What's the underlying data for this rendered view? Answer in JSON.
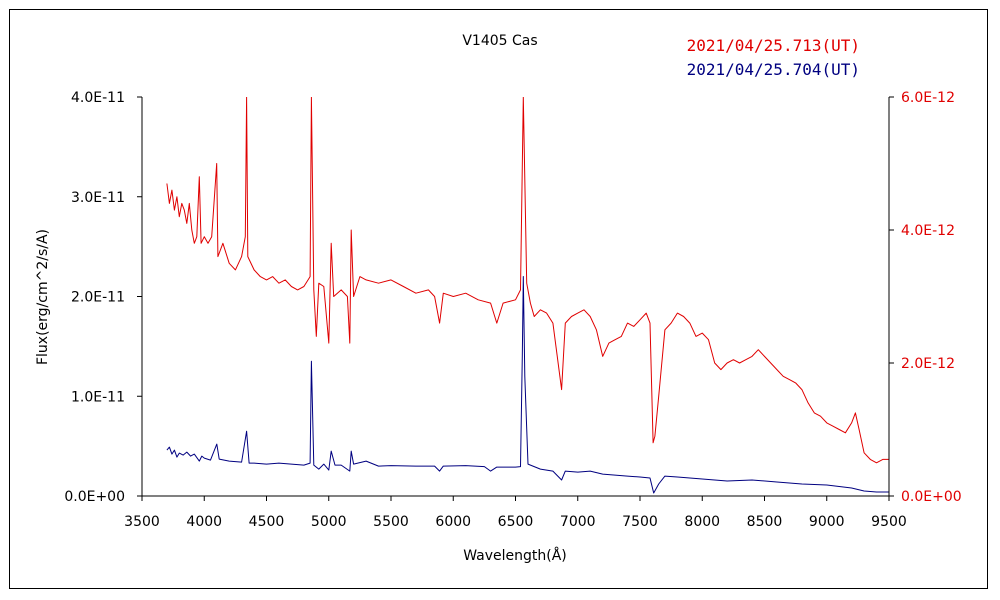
{
  "chart_data": {
    "type": "line",
    "title": "V1405 Cas",
    "xlabel": "Wavelength(Å)",
    "ylabel": "Flux(erg/cm^2/s/A)",
    "xlim": [
      3500,
      9500
    ],
    "ylim_left": [
      0,
      4e-11
    ],
    "ylim_right": [
      0,
      6e-12
    ],
    "grid": false,
    "legend_placement": "top-right",
    "x_ticks": [
      "3500",
      "4000",
      "4500",
      "5000",
      "5500",
      "6000",
      "6500",
      "7000",
      "7500",
      "8000",
      "8500",
      "9000",
      "9500"
    ],
    "y_ticks_left": [
      "0.0E+00",
      "1.0E-11",
      "2.0E-11",
      "3.0E-11",
      "4.0E-11"
    ],
    "y_ticks_right": [
      "0.0E+00",
      "2.0E-12",
      "4.0E-12",
      "6.0E-12"
    ],
    "series": [
      {
        "name": "2021/04/25.713(UT)",
        "axis": "right",
        "color": "#e00000",
        "points": [
          [
            3700,
            4.7e-12
          ],
          [
            3720,
            4.4e-12
          ],
          [
            3740,
            4.6e-12
          ],
          [
            3760,
            4.3e-12
          ],
          [
            3780,
            4.5e-12
          ],
          [
            3800,
            4.2e-12
          ],
          [
            3820,
            4.4e-12
          ],
          [
            3840,
            4.3e-12
          ],
          [
            3860,
            4.1e-12
          ],
          [
            3880,
            4.4e-12
          ],
          [
            3900,
            4e-12
          ],
          [
            3920,
            3.8e-12
          ],
          [
            3940,
            3.9e-12
          ],
          [
            3960,
            4.8e-12
          ],
          [
            3975,
            3.8e-12
          ],
          [
            4000,
            3.9e-12
          ],
          [
            4030,
            3.8e-12
          ],
          [
            4060,
            3.9e-12
          ],
          [
            4100,
            5e-12
          ],
          [
            4110,
            3.6e-12
          ],
          [
            4150,
            3.8e-12
          ],
          [
            4200,
            3.5e-12
          ],
          [
            4250,
            3.4e-12
          ],
          [
            4300,
            3.6e-12
          ],
          [
            4330,
            3.9e-12
          ],
          [
            4340,
            6e-12
          ],
          [
            4350,
            3.6e-12
          ],
          [
            4400,
            3.4e-12
          ],
          [
            4450,
            3.3e-12
          ],
          [
            4500,
            3.25e-12
          ],
          [
            4550,
            3.3e-12
          ],
          [
            4600,
            3.2e-12
          ],
          [
            4650,
            3.25e-12
          ],
          [
            4700,
            3.15e-12
          ],
          [
            4750,
            3.1e-12
          ],
          [
            4800,
            3.15e-12
          ],
          [
            4850,
            3.3e-12
          ],
          [
            4861,
            6e-12
          ],
          [
            4880,
            3.1e-12
          ],
          [
            4900,
            2.4e-12
          ],
          [
            4920,
            3.2e-12
          ],
          [
            4960,
            3.15e-12
          ],
          [
            5000,
            2.3e-12
          ],
          [
            5020,
            3.8e-12
          ],
          [
            5040,
            3e-12
          ],
          [
            5100,
            3.1e-12
          ],
          [
            5150,
            3e-12
          ],
          [
            5169,
            2.3e-12
          ],
          [
            5180,
            4e-12
          ],
          [
            5200,
            3e-12
          ],
          [
            5250,
            3.3e-12
          ],
          [
            5300,
            3.25e-12
          ],
          [
            5400,
            3.2e-12
          ],
          [
            5500,
            3.25e-12
          ],
          [
            5600,
            3.15e-12
          ],
          [
            5700,
            3.05e-12
          ],
          [
            5800,
            3.1e-12
          ],
          [
            5850,
            3e-12
          ],
          [
            5890,
            2.6e-12
          ],
          [
            5920,
            3.05e-12
          ],
          [
            6000,
            3e-12
          ],
          [
            6100,
            3.05e-12
          ],
          [
            6200,
            2.95e-12
          ],
          [
            6300,
            2.9e-12
          ],
          [
            6350,
            2.6e-12
          ],
          [
            6400,
            2.9e-12
          ],
          [
            6500,
            2.95e-12
          ],
          [
            6540,
            3.1e-12
          ],
          [
            6563,
            6e-12
          ],
          [
            6590,
            3.2e-12
          ],
          [
            6620,
            2.9e-12
          ],
          [
            6650,
            2.7e-12
          ],
          [
            6700,
            2.8e-12
          ],
          [
            6750,
            2.75e-12
          ],
          [
            6800,
            2.6e-12
          ],
          [
            6870,
            1.6e-12
          ],
          [
            6900,
            2.6e-12
          ],
          [
            6950,
            2.7e-12
          ],
          [
            7000,
            2.75e-12
          ],
          [
            7050,
            2.8e-12
          ],
          [
            7100,
            2.7e-12
          ],
          [
            7150,
            2.5e-12
          ],
          [
            7200,
            2.1e-12
          ],
          [
            7250,
            2.3e-12
          ],
          [
            7300,
            2.35e-12
          ],
          [
            7350,
            2.4e-12
          ],
          [
            7400,
            2.6e-12
          ],
          [
            7450,
            2.55e-12
          ],
          [
            7500,
            2.65e-12
          ],
          [
            7550,
            2.75e-12
          ],
          [
            7580,
            2.6e-12
          ],
          [
            7605,
            8e-13
          ],
          [
            7620,
            9e-13
          ],
          [
            7650,
            1.5e-12
          ],
          [
            7700,
            2.5e-12
          ],
          [
            7750,
            2.6e-12
          ],
          [
            7800,
            2.75e-12
          ],
          [
            7850,
            2.7e-12
          ],
          [
            7900,
            2.6e-12
          ],
          [
            7950,
            2.4e-12
          ],
          [
            8000,
            2.45e-12
          ],
          [
            8050,
            2.35e-12
          ],
          [
            8100,
            2e-12
          ],
          [
            8150,
            1.9e-12
          ],
          [
            8200,
            2e-12
          ],
          [
            8250,
            2.05e-12
          ],
          [
            8300,
            2e-12
          ],
          [
            8350,
            2.05e-12
          ],
          [
            8400,
            2.1e-12
          ],
          [
            8450,
            2.2e-12
          ],
          [
            8500,
            2.1e-12
          ],
          [
            8550,
            2e-12
          ],
          [
            8600,
            1.9e-12
          ],
          [
            8650,
            1.8e-12
          ],
          [
            8700,
            1.75e-12
          ],
          [
            8750,
            1.7e-12
          ],
          [
            8800,
            1.6e-12
          ],
          [
            8850,
            1.4e-12
          ],
          [
            8900,
            1.25e-12
          ],
          [
            8950,
            1.2e-12
          ],
          [
            9000,
            1.1e-12
          ],
          [
            9050,
            1.05e-12
          ],
          [
            9100,
            1e-12
          ],
          [
            9150,
            9.5e-13
          ],
          [
            9200,
            1.1e-12
          ],
          [
            9230,
            1.25e-12
          ],
          [
            9260,
            1e-12
          ],
          [
            9300,
            6.5e-13
          ],
          [
            9350,
            5.5e-13
          ],
          [
            9400,
            5e-13
          ],
          [
            9450,
            5.5e-13
          ],
          [
            9500,
            5.5e-13
          ]
        ]
      },
      {
        "name": "2021/04/25.704(UT)",
        "axis": "left",
        "color": "#000080",
        "points": [
          [
            3700,
            4.6e-12
          ],
          [
            3720,
            4.9e-12
          ],
          [
            3740,
            4.2e-12
          ],
          [
            3760,
            4.6e-12
          ],
          [
            3780,
            3.9e-12
          ],
          [
            3800,
            4.3e-12
          ],
          [
            3830,
            4.1e-12
          ],
          [
            3860,
            4.4e-12
          ],
          [
            3890,
            4e-12
          ],
          [
            3920,
            4.2e-12
          ],
          [
            3960,
            3.5e-12
          ],
          [
            3980,
            4e-12
          ],
          [
            4000,
            3.8e-12
          ],
          [
            4050,
            3.6e-12
          ],
          [
            4101,
            5.2e-12
          ],
          [
            4120,
            3.7e-12
          ],
          [
            4200,
            3.5e-12
          ],
          [
            4300,
            3.4e-12
          ],
          [
            4340,
            6.5e-12
          ],
          [
            4360,
            3.3e-12
          ],
          [
            4400,
            3.3e-12
          ],
          [
            4500,
            3.2e-12
          ],
          [
            4600,
            3.3e-12
          ],
          [
            4700,
            3.2e-12
          ],
          [
            4800,
            3.1e-12
          ],
          [
            4850,
            3.3e-12
          ],
          [
            4861,
            1.35e-11
          ],
          [
            4880,
            3.1e-12
          ],
          [
            4920,
            2.7e-12
          ],
          [
            4960,
            3.2e-12
          ],
          [
            5000,
            2.6e-12
          ],
          [
            5020,
            4.5e-12
          ],
          [
            5050,
            3.1e-12
          ],
          [
            5100,
            3.1e-12
          ],
          [
            5169,
            2.5e-12
          ],
          [
            5180,
            4.5e-12
          ],
          [
            5200,
            3.2e-12
          ],
          [
            5300,
            3.5e-12
          ],
          [
            5400,
            3e-12
          ],
          [
            5500,
            3.05e-12
          ],
          [
            5700,
            3e-12
          ],
          [
            5850,
            3e-12
          ],
          [
            5890,
            2.5e-12
          ],
          [
            5920,
            3e-12
          ],
          [
            6100,
            3.05e-12
          ],
          [
            6250,
            2.95e-12
          ],
          [
            6300,
            2.5e-12
          ],
          [
            6350,
            2.9e-12
          ],
          [
            6500,
            2.9e-12
          ],
          [
            6540,
            2.95e-12
          ],
          [
            6555,
            1.4e-11
          ],
          [
            6563,
            2.2e-11
          ],
          [
            6575,
            1.2e-11
          ],
          [
            6600,
            3.2e-12
          ],
          [
            6700,
            2.7e-12
          ],
          [
            6800,
            2.5e-12
          ],
          [
            6870,
            1.6e-12
          ],
          [
            6900,
            2.5e-12
          ],
          [
            7000,
            2.4e-12
          ],
          [
            7100,
            2.5e-12
          ],
          [
            7200,
            2.2e-12
          ],
          [
            7300,
            2.1e-12
          ],
          [
            7400,
            2e-12
          ],
          [
            7500,
            1.9e-12
          ],
          [
            7580,
            1.8e-12
          ],
          [
            7610,
            3e-13
          ],
          [
            7650,
            1.2e-12
          ],
          [
            7700,
            2e-12
          ],
          [
            7800,
            1.9e-12
          ],
          [
            8000,
            1.7e-12
          ],
          [
            8200,
            1.5e-12
          ],
          [
            8400,
            1.6e-12
          ],
          [
            8600,
            1.4e-12
          ],
          [
            8800,
            1.2e-12
          ],
          [
            9000,
            1.1e-12
          ],
          [
            9200,
            8e-13
          ],
          [
            9300,
            5e-13
          ],
          [
            9400,
            4e-13
          ],
          [
            9500,
            4e-13
          ]
        ]
      }
    ]
  }
}
